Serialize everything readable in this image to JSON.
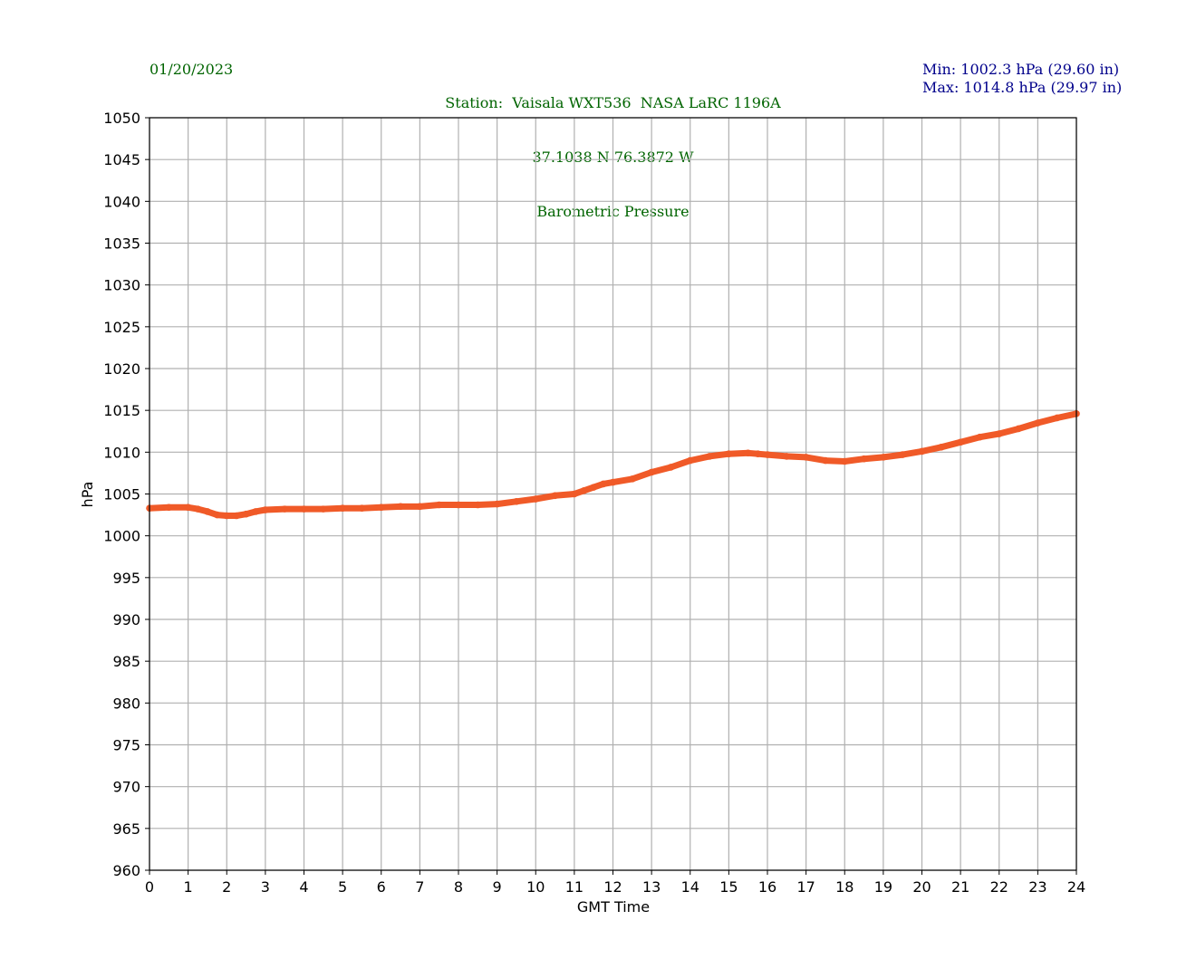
{
  "header": {
    "date": "01/20/2023",
    "station_line": "Station:  Vaisala WXT536  NASA LaRC 1196A",
    "coords_line": "37.1038 N 76.3872 W",
    "title_line": "Barometric Pressure",
    "min_line": "Min: 1002.3 hPa (29.60 in)",
    "max_line": "Max: 1014.8 hPa (29.97 in)"
  },
  "colors": {
    "series": "#f05a28",
    "grid": "#b0b0b0",
    "header_green": "#006400",
    "header_blue": "#00008b"
  },
  "chart_data": {
    "type": "line",
    "title": "Barometric Pressure",
    "xlabel": "GMT Time",
    "ylabel": "hPa",
    "xlim": [
      0,
      24
    ],
    "ylim": [
      960,
      1050
    ],
    "xticks": [
      0,
      1,
      2,
      3,
      4,
      5,
      6,
      7,
      8,
      9,
      10,
      11,
      12,
      13,
      14,
      15,
      16,
      17,
      18,
      19,
      20,
      21,
      22,
      23,
      24
    ],
    "yticks": [
      960,
      965,
      970,
      975,
      980,
      985,
      990,
      995,
      1000,
      1005,
      1010,
      1015,
      1020,
      1025,
      1030,
      1035,
      1040,
      1045,
      1050
    ],
    "grid": true,
    "series": [
      {
        "x": [
          0,
          0.5,
          1,
          1.25,
          1.5,
          1.75,
          2,
          2.25,
          2.5,
          2.75,
          3,
          3.5,
          4,
          4.5,
          5,
          5.5,
          6,
          6.5,
          7,
          7.5,
          8,
          8.5,
          9,
          9.5,
          10,
          10.5,
          11,
          11.25,
          11.5,
          11.75,
          12,
          12.5,
          13,
          13.5,
          14,
          14.5,
          15,
          15.5,
          15.75,
          16,
          16.5,
          17,
          17.5,
          18,
          18.5,
          19,
          19.5,
          20,
          20.5,
          21,
          21.5,
          22,
          22.5,
          23,
          23.5,
          24
        ],
        "y": [
          1003.3,
          1003.4,
          1003.4,
          1003.2,
          1002.9,
          1002.5,
          1002.4,
          1002.4,
          1002.6,
          1002.9,
          1003.1,
          1003.2,
          1003.2,
          1003.2,
          1003.3,
          1003.3,
          1003.4,
          1003.5,
          1003.5,
          1003.7,
          1003.7,
          1003.7,
          1003.8,
          1004.1,
          1004.4,
          1004.8,
          1005.0,
          1005.4,
          1005.8,
          1006.2,
          1006.4,
          1006.8,
          1007.6,
          1008.2,
          1009.0,
          1009.5,
          1009.8,
          1009.9,
          1009.8,
          1009.7,
          1009.5,
          1009.4,
          1009.0,
          1008.9,
          1009.2,
          1009.4,
          1009.7,
          1010.1,
          1010.6,
          1011.2,
          1011.8,
          1012.2,
          1012.8,
          1013.5,
          1014.1,
          1014.6
        ]
      }
    ]
  }
}
